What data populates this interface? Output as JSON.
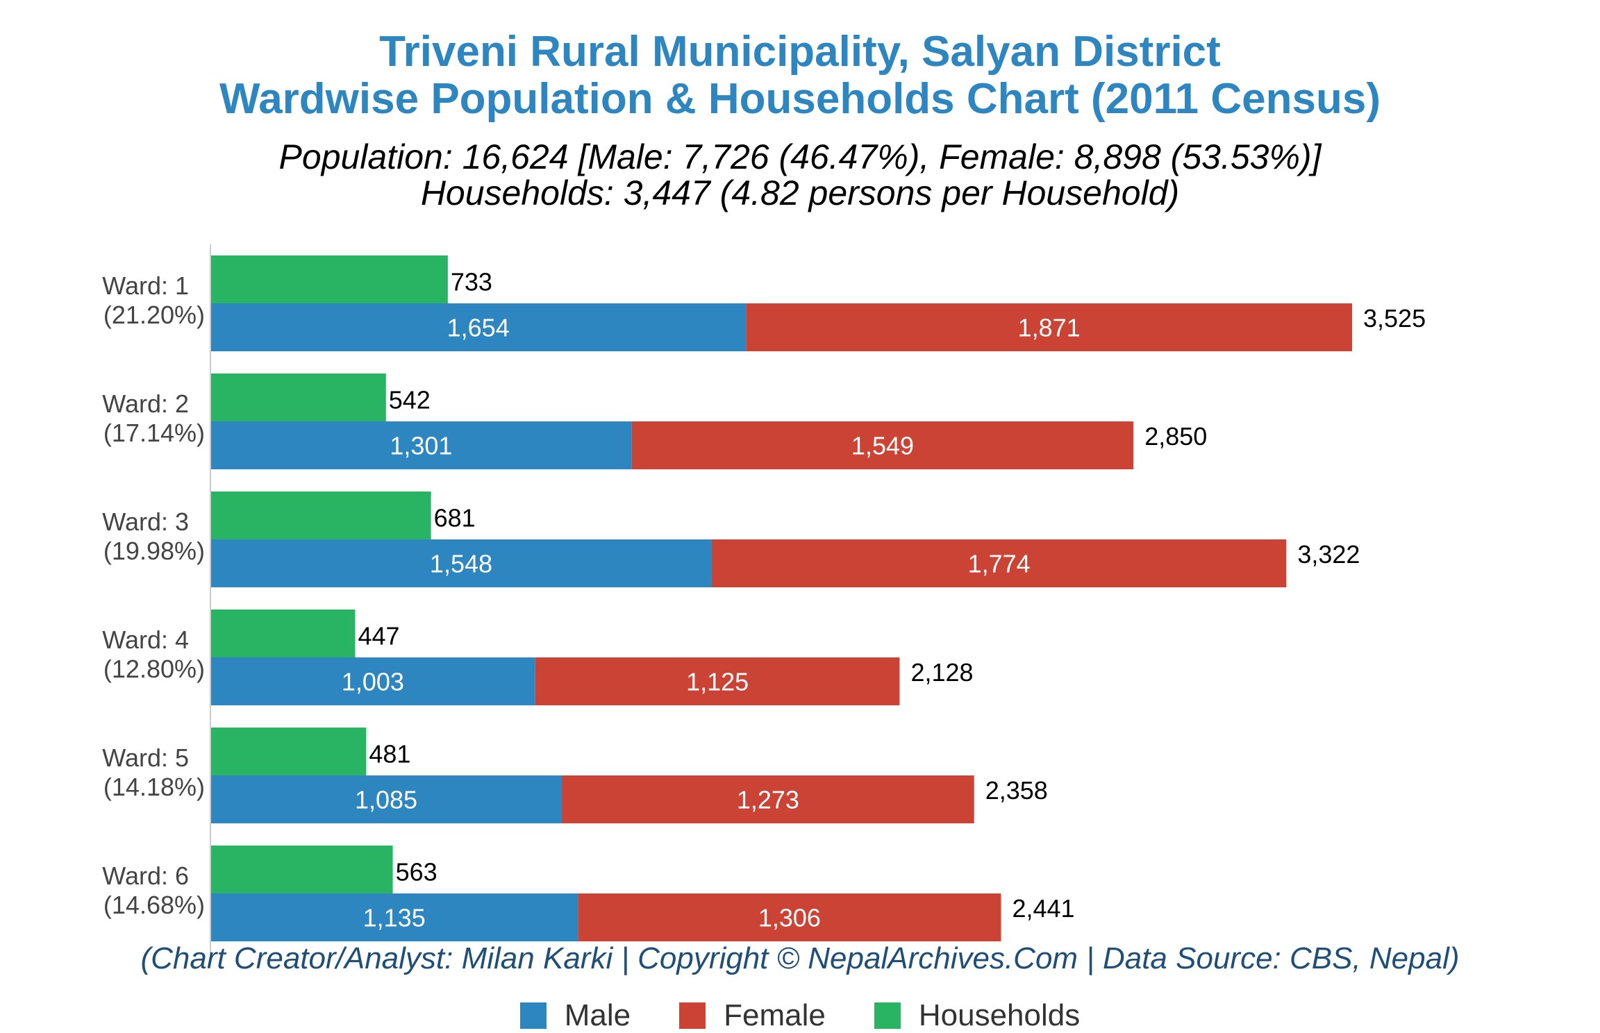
{
  "chart_data": {
    "type": "bar",
    "title": "Triveni Rural Municipality, Salyan District",
    "subtitle": "Wardwise Population & Households Chart (2011 Census)",
    "summary_population": "Population: 16,624 [Male: 7,726 (46.47%), Female: 8,898 (53.53%)]",
    "summary_households": "Households: 3,447 (4.82 persons per Household)",
    "credit": "(Chart Creator/Analyst: Milan Karki | Copyright © NepalArchives.Com | Data Source: CBS, Nepal)",
    "categories": [
      "Ward: 1",
      "Ward: 2",
      "Ward: 3",
      "Ward: 4",
      "Ward: 5",
      "Ward: 6"
    ],
    "category_shares": [
      "(21.20%)",
      "(17.14%)",
      "(19.98%)",
      "(12.80%)",
      "(14.18%)",
      "(14.68%)"
    ],
    "series": [
      {
        "name": "Male",
        "color": "#2e86c1",
        "values": [
          1654,
          1301,
          1548,
          1003,
          1085,
          1135
        ]
      },
      {
        "name": "Female",
        "color": "#cb4335",
        "values": [
          1871,
          1549,
          1774,
          1125,
          1273,
          1306
        ]
      },
      {
        "name": "Households",
        "color": "#28b463",
        "values": [
          733,
          542,
          681,
          447,
          481,
          563
        ]
      }
    ],
    "totals": [
      3525,
      2850,
      3322,
      2128,
      2358,
      2441
    ],
    "legend_position": "bottom",
    "grid": false
  }
}
